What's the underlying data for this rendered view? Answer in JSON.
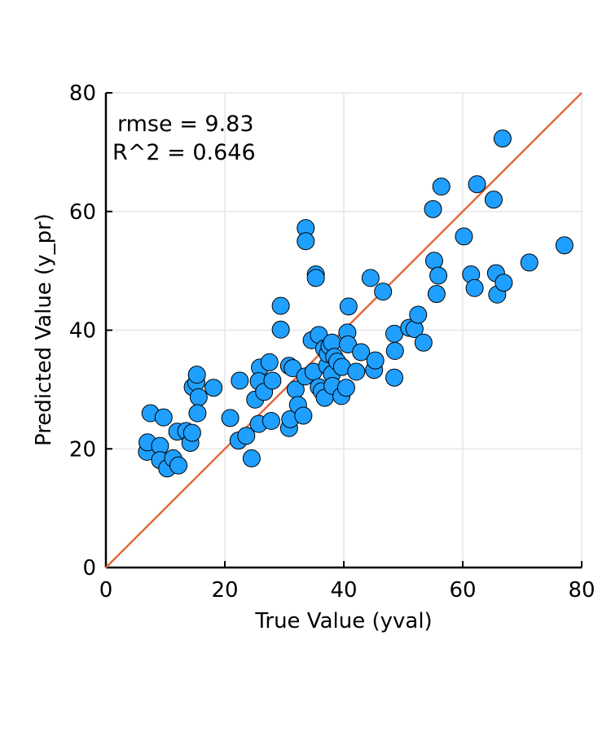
{
  "chart_data": {
    "type": "scatter",
    "xlabel": "True Value (yval)",
    "ylabel": "Predicted Value (y_pr)",
    "xlim": [
      0,
      80
    ],
    "ylim": [
      0,
      80
    ],
    "xticks": [
      0,
      20,
      40,
      60,
      80
    ],
    "yticks": [
      0,
      20,
      40,
      60,
      80
    ],
    "grid": true,
    "annotations": [
      "rmse = 9.83",
      "R^2 = 0.646"
    ],
    "reference_line": {
      "from": [
        0,
        0
      ],
      "to": [
        80,
        80
      ]
    },
    "colors": {
      "points": "#1f9fff",
      "line": "#e26a3e"
    },
    "points": [
      [
        6.9,
        19.5
      ],
      [
        7.0,
        21.1
      ],
      [
        7.5,
        26.0
      ],
      [
        9.1,
        20.5
      ],
      [
        9.1,
        18.1
      ],
      [
        9.7,
        25.3
      ],
      [
        10.3,
        16.7
      ],
      [
        11.3,
        18.4
      ],
      [
        12.2,
        17.2
      ],
      [
        12.0,
        22.9
      ],
      [
        13.5,
        23.0
      ],
      [
        14.2,
        21.0
      ],
      [
        14.6,
        30.4
      ],
      [
        14.5,
        22.7
      ],
      [
        15.2,
        31.2
      ],
      [
        15.3,
        32.5
      ],
      [
        15.6,
        28.7
      ],
      [
        15.4,
        26.0
      ],
      [
        18.1,
        30.3
      ],
      [
        20.9,
        25.2
      ],
      [
        22.5,
        31.5
      ],
      [
        22.3,
        21.4
      ],
      [
        23.6,
        22.2
      ],
      [
        24.5,
        18.4
      ],
      [
        25.1,
        28.3
      ],
      [
        25.7,
        24.2
      ],
      [
        25.9,
        33.7
      ],
      [
        25.7,
        31.4
      ],
      [
        26.6,
        29.6
      ],
      [
        27.5,
        34.6
      ],
      [
        28.0,
        31.5
      ],
      [
        27.8,
        24.7
      ],
      [
        29.4,
        44.1
      ],
      [
        29.4,
        40.1
      ],
      [
        30.8,
        23.5
      ],
      [
        31.0,
        25.0
      ],
      [
        30.8,
        34.0
      ],
      [
        31.4,
        33.6
      ],
      [
        31.9,
        30.0
      ],
      [
        32.3,
        27.4
      ],
      [
        33.2,
        25.6
      ],
      [
        33.5,
        32.2
      ],
      [
        33.6,
        57.2
      ],
      [
        33.6,
        55.0
      ],
      [
        34.6,
        38.3
      ],
      [
        34.9,
        33.0
      ],
      [
        35.3,
        49.4
      ],
      [
        35.3,
        48.8
      ],
      [
        35.8,
        30.4
      ],
      [
        35.8,
        39.2
      ],
      [
        36.3,
        29.7
      ],
      [
        36.7,
        36.9
      ],
      [
        36.8,
        28.6
      ],
      [
        37.2,
        34.0
      ],
      [
        37.3,
        36.0
      ],
      [
        37.6,
        37.3
      ],
      [
        38.0,
        37.9
      ],
      [
        38.0,
        32.6
      ],
      [
        38.1,
        30.6
      ],
      [
        38.4,
        35.5
      ],
      [
        38.9,
        34.7
      ],
      [
        39.6,
        28.9
      ],
      [
        39.7,
        33.8
      ],
      [
        40.4,
        30.3
      ],
      [
        40.6,
        39.6
      ],
      [
        40.7,
        37.6
      ],
      [
        40.8,
        44.0
      ],
      [
        42.1,
        33.0
      ],
      [
        42.9,
        36.3
      ],
      [
        44.5,
        48.8
      ],
      [
        45.1,
        33.3
      ],
      [
        45.3,
        34.9
      ],
      [
        46.6,
        46.5
      ],
      [
        48.5,
        39.4
      ],
      [
        48.6,
        36.5
      ],
      [
        48.5,
        32.0
      ],
      [
        51.0,
        40.4
      ],
      [
        51.9,
        40.2
      ],
      [
        52.5,
        42.6
      ],
      [
        53.4,
        37.9
      ],
      [
        55.0,
        60.4
      ],
      [
        55.2,
        51.7
      ],
      [
        55.6,
        46.1
      ],
      [
        55.9,
        49.2
      ],
      [
        56.4,
        64.2
      ],
      [
        60.2,
        55.8
      ],
      [
        61.4,
        49.4
      ],
      [
        62.0,
        47.1
      ],
      [
        62.4,
        64.6
      ],
      [
        65.2,
        62.0
      ],
      [
        65.6,
        49.6
      ],
      [
        65.8,
        46.0
      ],
      [
        66.9,
        48.0
      ],
      [
        66.7,
        72.3
      ],
      [
        71.2,
        51.4
      ],
      [
        77.1,
        54.3
      ]
    ]
  }
}
